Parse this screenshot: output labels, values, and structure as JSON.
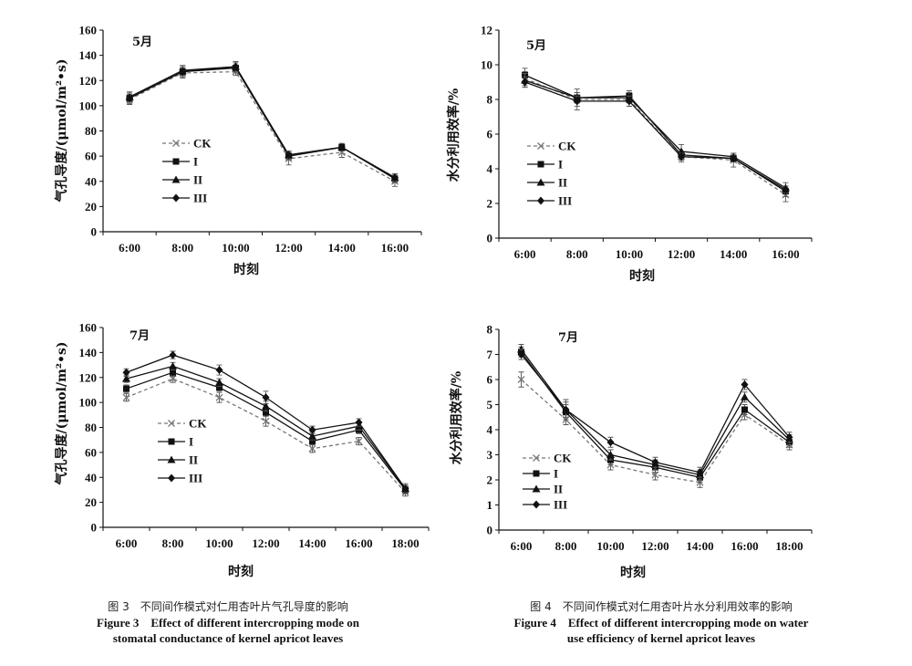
{
  "chart_data": [
    {
      "type": "line",
      "panel_label": "5月",
      "ylabel": "气孔导度/(μmol/m²•s)",
      "xlabel": "时刻",
      "categories": [
        "6:00",
        "8:00",
        "10:00",
        "12:00",
        "14:00",
        "16:00"
      ],
      "ylim": [
        0,
        160
      ],
      "yticks": [
        0,
        20,
        40,
        60,
        80,
        100,
        120,
        140,
        160
      ],
      "legend_position": "left-middle",
      "series": [
        {
          "name": "CK",
          "values": [
            105,
            126,
            127,
            58,
            63,
            40
          ],
          "err": [
            4,
            4,
            3,
            5,
            4,
            4
          ]
        },
        {
          "name": "I",
          "values": [
            106,
            127,
            130,
            60,
            67,
            42
          ],
          "err": [
            4,
            4,
            4,
            3,
            3,
            3
          ]
        },
        {
          "name": "II",
          "values": [
            107,
            128,
            131,
            61,
            67,
            43
          ],
          "err": [
            4,
            4,
            4,
            3,
            3,
            3
          ]
        },
        {
          "name": "III",
          "values": [
            106,
            127,
            131,
            61,
            67,
            43
          ],
          "err": [
            4,
            4,
            4,
            3,
            3,
            3
          ]
        }
      ]
    },
    {
      "type": "line",
      "panel_label": "5月",
      "ylabel": "水分利用效率/%",
      "xlabel": "时刻",
      "categories": [
        "6:00",
        "8:00",
        "10:00",
        "12:00",
        "14:00",
        "16:00"
      ],
      "ylim": [
        0,
        12
      ],
      "yticks": [
        0,
        2,
        4,
        6,
        8,
        10,
        12
      ],
      "legend_position": "left-middle",
      "series": [
        {
          "name": "CK",
          "values": [
            9.2,
            8.0,
            8.0,
            4.7,
            4.5,
            2.5
          ],
          "err": [
            0.4,
            0.6,
            0.4,
            0.3,
            0.4,
            0.4
          ]
        },
        {
          "name": "I",
          "values": [
            9.4,
            8.1,
            8.2,
            4.8,
            4.6,
            2.7
          ],
          "err": [
            0.4,
            0.3,
            0.3,
            0.2,
            0.2,
            0.3
          ]
        },
        {
          "name": "II",
          "values": [
            9.1,
            8.1,
            8.1,
            5.0,
            4.7,
            2.9
          ],
          "err": [
            0.4,
            0.3,
            0.3,
            0.4,
            0.2,
            0.3
          ]
        },
        {
          "name": "III",
          "values": [
            9.0,
            7.9,
            7.9,
            4.7,
            4.6,
            2.8
          ],
          "err": [
            0.3,
            0.3,
            0.3,
            0.2,
            0.2,
            0.2
          ]
        }
      ]
    },
    {
      "type": "line",
      "panel_label": "7月",
      "ylabel": "气孔导度/(μmol/m²•s)",
      "xlabel": "时刻",
      "categories": [
        "6:00",
        "8:00",
        "10:00",
        "12:00",
        "14:00",
        "16:00",
        "18:00"
      ],
      "ylim": [
        0,
        160
      ],
      "yticks": [
        0,
        20,
        40,
        60,
        80,
        100,
        120,
        140,
        160
      ],
      "legend_position": "middle",
      "series": [
        {
          "name": "CK",
          "values": [
            104,
            119,
            104,
            85,
            63,
            69,
            28
          ],
          "err": [
            3,
            3,
            4,
            4,
            3,
            3,
            3
          ]
        },
        {
          "name": "I",
          "values": [
            111,
            124,
            112,
            92,
            69,
            78,
            30
          ],
          "err": [
            3,
            3,
            3,
            3,
            3,
            3,
            3
          ]
        },
        {
          "name": "II",
          "values": [
            119,
            129,
            116,
            97,
            73,
            81,
            31
          ],
          "err": [
            3,
            3,
            3,
            4,
            3,
            3,
            3
          ]
        },
        {
          "name": "III",
          "values": [
            124,
            138,
            126,
            104,
            78,
            84,
            31
          ],
          "err": [
            3,
            3,
            4,
            5,
            3,
            3,
            4
          ]
        }
      ]
    },
    {
      "type": "line",
      "panel_label": "7月",
      "ylabel": "水分利用效率/%",
      "xlabel": "时刻",
      "categories": [
        "6:00",
        "8:00",
        "10:00",
        "12:00",
        "14:00",
        "16:00",
        "18:00"
      ],
      "ylim": [
        0,
        8
      ],
      "yticks": [
        0,
        1,
        2,
        3,
        4,
        5,
        6,
        7,
        8
      ],
      "legend_position": "left-bottom",
      "series": [
        {
          "name": "CK",
          "values": [
            6.0,
            4.4,
            2.6,
            2.2,
            1.9,
            4.6,
            3.4
          ],
          "err": [
            0.3,
            0.2,
            0.2,
            0.2,
            0.2,
            0.2,
            0.2
          ]
        },
        {
          "name": "I",
          "values": [
            7.1,
            4.7,
            2.8,
            2.5,
            2.1,
            4.8,
            3.5
          ],
          "err": [
            0.2,
            0.3,
            0.2,
            0.2,
            0.2,
            0.2,
            0.2
          ]
        },
        {
          "name": "II",
          "values": [
            7.2,
            4.8,
            3.0,
            2.6,
            2.2,
            5.3,
            3.6
          ],
          "err": [
            0.2,
            0.3,
            0.2,
            0.2,
            0.2,
            0.2,
            0.2
          ]
        },
        {
          "name": "III",
          "values": [
            7.0,
            4.8,
            3.5,
            2.7,
            2.3,
            5.8,
            3.7
          ],
          "err": [
            0.2,
            0.4,
            0.2,
            0.2,
            0.2,
            0.2,
            0.2
          ]
        }
      ]
    }
  ],
  "captions": {
    "fig3": {
      "zh": "图 3　不同间作模式对仁用杏叶片气孔导度的影响",
      "en_line1": "Figure 3　Effect of different intercropping mode on",
      "en_line2": "stomatal conductance of kernel apricot leaves"
    },
    "fig4": {
      "zh": "图 4　不同间作模式对仁用杏叶片水分利用效率的影响",
      "en_line1": "Figure 4　Effect of different intercropping mode on water",
      "en_line2": "use efficiency of kernel apricot leaves"
    }
  }
}
